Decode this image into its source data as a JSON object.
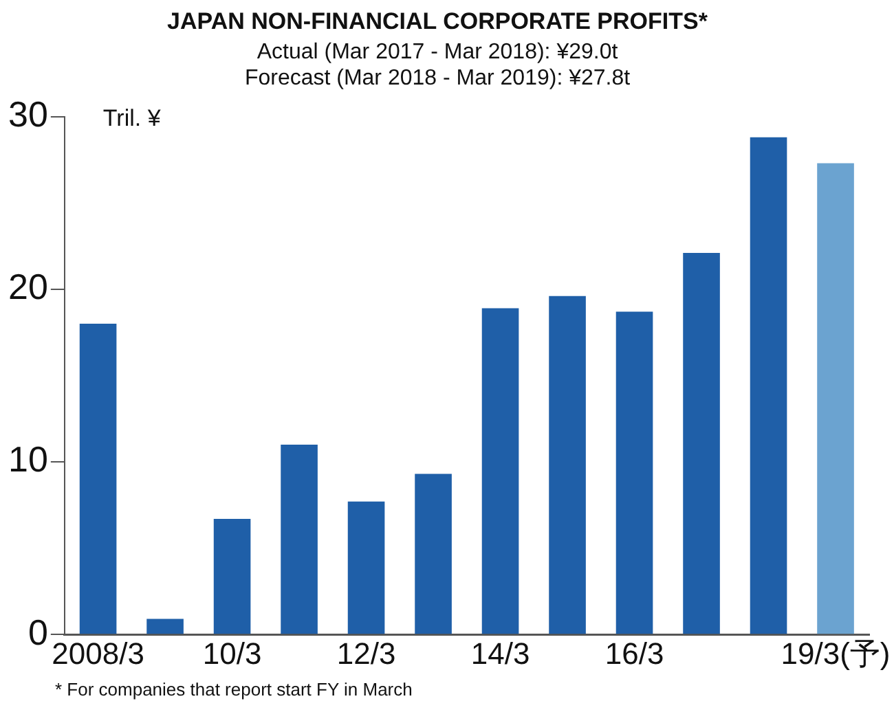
{
  "chart_data": {
    "type": "bar",
    "title": "JAPAN NON-FINANCIAL CORPORATE PROFITS*",
    "subtitle": [
      "Actual (Mar 2017 - Mar 2018): ¥29.0t",
      "Forecast (Mar 2018 - Mar 2019): ¥27.8t"
    ],
    "ylabel": "Tril. ¥",
    "categories": [
      "2008/3",
      null,
      "10/3",
      null,
      "12/3",
      null,
      "14/3",
      null,
      "16/3",
      null,
      null,
      "19/3(予)"
    ],
    "values": [
      18.0,
      0.9,
      6.7,
      11.0,
      7.7,
      9.3,
      18.9,
      19.6,
      18.7,
      22.1,
      28.8,
      27.3
    ],
    "colors": [
      "#1f5fa8",
      "#1f5fa8",
      "#1f5fa8",
      "#1f5fa8",
      "#1f5fa8",
      "#1f5fa8",
      "#1f5fa8",
      "#1f5fa8",
      "#1f5fa8",
      "#1f5fa8",
      "#1f5fa8",
      "#6ba3d0"
    ],
    "ylim": [
      0,
      30
    ],
    "yticks": [
      0,
      10,
      20,
      30
    ],
    "grid": false,
    "legend": false,
    "annotations": [
      "* For companies that report start FY in March"
    ]
  }
}
